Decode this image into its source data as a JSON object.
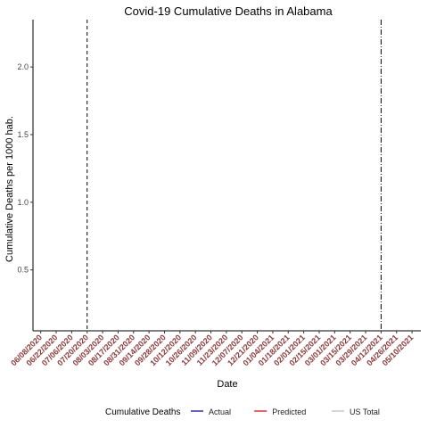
{
  "chart_data": {
    "type": "line",
    "title": "Covid-19  Cumulative Deaths  in  Alabama",
    "xlabel": "Date",
    "ylabel": "Cumulative Deaths  per 1000 hab.",
    "x_ticks": [
      "06/08/2020",
      "06/22/2020",
      "07/06/2020",
      "07/20/2020",
      "08/03/2020",
      "08/17/2020",
      "08/31/2020",
      "09/14/2020",
      "09/28/2020",
      "10/12/2020",
      "10/26/2020",
      "11/09/2020",
      "11/23/2020",
      "12/07/2020",
      "12/21/2020",
      "01/04/2021",
      "01/18/2021",
      "02/01/2021",
      "02/15/2021",
      "03/01/2021",
      "03/15/2021",
      "03/29/2021",
      "04/12/2021",
      "04/26/2021",
      "05/10/2021"
    ],
    "x_range": [
      "06/01/2020",
      "05/18/2021"
    ],
    "y_ticks": [
      0.5,
      1.0,
      1.5,
      2.0
    ],
    "y_tick_labels": [
      "0.5",
      "1.0",
      "1.5",
      "2.0"
    ],
    "ylim": [
      0.05,
      2.35
    ],
    "grid": false,
    "vlines": [
      {
        "x": "07/20/2020",
        "style": "dashed"
      },
      {
        "x": "04/12/2021",
        "style": "dashdot"
      }
    ],
    "legend": {
      "title": "Cumulative Deaths",
      "placement": "bottom",
      "entries": [
        {
          "label": "Actual",
          "color": "#00008b"
        },
        {
          "label": "Predicted",
          "color": "#cc0000"
        },
        {
          "label": "US Total",
          "color": "#bbbbbb"
        }
      ]
    },
    "series": [],
    "tick_label_color": "#8b3a3a"
  }
}
